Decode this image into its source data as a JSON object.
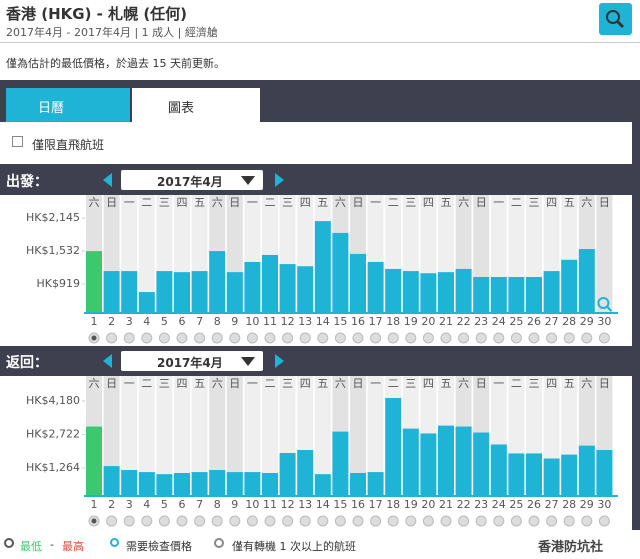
{
  "header": {
    "title": "香港 (HKG) - 札幌 (任何)",
    "dates": "2017年4月 - 2017年4月",
    "passengers": "1 成人",
    "cabin": "經濟艙"
  },
  "notice": "僅為估計的最低價格，於過去 15 天前更新。",
  "tabs": [
    "日曆",
    "圖表"
  ],
  "direct_only": "僅限直飛航班",
  "legend": {
    "lowest": "最低",
    "dash": "-",
    "highest": "最高",
    "check_price": "需要檢查價格",
    "connections": "僅有轉機 1 次以上的航班"
  },
  "watermark": "香港防坑社",
  "chart_data": [
    {
      "type": "bar",
      "label": "出發：",
      "month": "2017年4月",
      "weekdays": [
        "六",
        "日",
        "一",
        "二",
        "三",
        "四",
        "五",
        "六",
        "日",
        "一",
        "二",
        "三",
        "四",
        "五",
        "六",
        "日",
        "一",
        "二",
        "三",
        "四",
        "五",
        "六",
        "日",
        "一",
        "二",
        "三",
        "四",
        "五",
        "六",
        "日"
      ],
      "categories": [
        "1",
        "2",
        "3",
        "4",
        "5",
        "6",
        "7",
        "8",
        "9",
        "10",
        "11",
        "12",
        "13",
        "14",
        "15",
        "16",
        "17",
        "18",
        "19",
        "20",
        "21",
        "22",
        "23",
        "24",
        "25",
        "26",
        "27",
        "28",
        "29",
        "30"
      ],
      "values": [
        1532,
        1160,
        1160,
        770,
        1160,
        1140,
        1160,
        1532,
        1140,
        1330,
        1460,
        1290,
        1250,
        2090,
        1870,
        1480,
        1330,
        1200,
        1160,
        1120,
        1140,
        1200,
        1050,
        1050,
        1050,
        1050,
        1160,
        1370,
        1570,
        null
      ],
      "colors": [
        "#3cc86e",
        "#1fb3d6",
        "#1fb3d6",
        "#1fb3d6",
        "#1fb3d6",
        "#1fb3d6",
        "#1fb3d6",
        "#1fb3d6",
        "#1fb3d6",
        "#1fb3d6",
        "#1fb3d6",
        "#1fb3d6",
        "#1fb3d6",
        "#1fb3d6",
        "#1fb3d6",
        "#1fb3d6",
        "#1fb3d6",
        "#1fb3d6",
        "#1fb3d6",
        "#1fb3d6",
        "#1fb3d6",
        "#1fb3d6",
        "#1fb3d6",
        "#1fb3d6",
        "#1fb3d6",
        "#1fb3d6",
        "#1fb3d6",
        "#1fb3d6",
        "#1fb3d6",
        "#1fb3d6"
      ],
      "ylim": [
        380,
        2520
      ],
      "yticks": [
        {
          "value": 919,
          "label": "HK$919"
        },
        {
          "value": 1532,
          "label": "HK$1,532"
        },
        {
          "value": 2145,
          "label": "HK$2,145"
        }
      ]
    },
    {
      "type": "bar",
      "label": "返回：",
      "month": "2017年4月",
      "weekdays": [
        "六",
        "日",
        "一",
        "二",
        "三",
        "四",
        "五",
        "六",
        "日",
        "一",
        "二",
        "三",
        "四",
        "五",
        "六",
        "日",
        "一",
        "二",
        "三",
        "四",
        "五",
        "六",
        "日",
        "一",
        "二",
        "三",
        "四",
        "五",
        "六",
        "日"
      ],
      "categories": [
        "1",
        "2",
        "3",
        "4",
        "5",
        "6",
        "7",
        "8",
        "9",
        "10",
        "11",
        "12",
        "13",
        "14",
        "15",
        "16",
        "17",
        "18",
        "19",
        "20",
        "21",
        "22",
        "23",
        "24",
        "25",
        "26",
        "27",
        "28",
        "29",
        "30"
      ],
      "values": [
        3070,
        1350,
        1180,
        1090,
        1000,
        1050,
        1090,
        1180,
        1090,
        1090,
        1050,
        1920,
        2050,
        1000,
        2850,
        1050,
        1090,
        4310,
        2980,
        2770,
        3110,
        3070,
        2810,
        2290,
        1900,
        1900,
        1680,
        1850,
        2240,
        2050
      ],
      "colors": [
        "#3cc86e",
        "#1fb3d6",
        "#1fb3d6",
        "#1fb3d6",
        "#1fb3d6",
        "#1fb3d6",
        "#1fb3d6",
        "#1fb3d6",
        "#1fb3d6",
        "#1fb3d6",
        "#1fb3d6",
        "#1fb3d6",
        "#1fb3d6",
        "#1fb3d6",
        "#1fb3d6",
        "#1fb3d6",
        "#1fb3d6",
        "#1fb3d6",
        "#1fb3d6",
        "#1fb3d6",
        "#1fb3d6",
        "#1fb3d6",
        "#1fb3d6",
        "#1fb3d6",
        "#1fb3d6",
        "#1fb3d6",
        "#1fb3d6",
        "#1fb3d6",
        "#1fb3d6",
        "#1fb3d6"
      ],
      "ylim": [
        50,
        5050
      ],
      "yticks": [
        {
          "value": 1264,
          "label": "HK$1,264"
        },
        {
          "value": 2722,
          "label": "HK$2,722"
        },
        {
          "value": 4180,
          "label": "HK$4,180"
        }
      ]
    }
  ]
}
